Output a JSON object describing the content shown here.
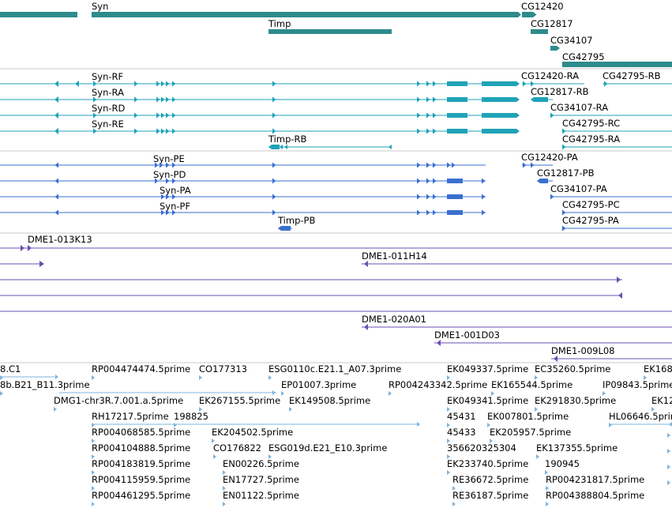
{
  "colors": {
    "gene": "#2e8b8b",
    "transcript": "#1fa3b8",
    "protein": "#3a6fd0",
    "clone": "#6a4fb0",
    "est": "#7fb4dc",
    "divider": "#c8c8c8"
  },
  "tracks": [
    {
      "name": "gene",
      "features": [
        {
          "label": "Syn",
          "kind": "bar"
        },
        {
          "label": "",
          "kind": "bar"
        },
        {
          "label": "CG12420",
          "kind": "arrow"
        },
        {
          "label": "Timp",
          "kind": "bar"
        },
        {
          "label": "CG12817",
          "kind": "bar"
        },
        {
          "label": "CG34107",
          "kind": "arrow"
        },
        {
          "label": "CG42795",
          "kind": "bar"
        }
      ]
    },
    {
      "name": "transcript",
      "features": [
        {
          "label": "Syn-RF"
        },
        {
          "label": "Syn-RA"
        },
        {
          "label": "Syn-RD"
        },
        {
          "label": "Syn-RE"
        },
        {
          "label": "CG12420-RA"
        },
        {
          "label": "CG42795-RB"
        },
        {
          "label": "CG12817-RB"
        },
        {
          "label": "CG34107-RA"
        },
        {
          "label": "CG42795-RC"
        },
        {
          "label": "Timp-RB"
        },
        {
          "label": "CG42795-RA"
        }
      ]
    },
    {
      "name": "protein",
      "features": [
        {
          "label": "Syn-PE"
        },
        {
          "label": "Syn-PD"
        },
        {
          "label": "Syn-PA"
        },
        {
          "label": "Syn-PF"
        },
        {
          "label": "CG12420-PA"
        },
        {
          "label": "CG12817-PB"
        },
        {
          "label": "CG34107-PA"
        },
        {
          "label": "CG42795-PC"
        },
        {
          "label": "Timp-PB"
        },
        {
          "label": "CG42795-PA"
        }
      ]
    },
    {
      "name": "clone",
      "features": [
        {
          "label": "DME1-013K13"
        },
        {
          "label": "DME1-011H14"
        },
        {
          "label": "DME1-020A01"
        },
        {
          "label": "DME1-001D03"
        },
        {
          "label": "DME1-009L08"
        }
      ]
    },
    {
      "name": "est",
      "features": [
        {
          "label": "8.C1"
        },
        {
          "label": "RP004474474.5prime"
        },
        {
          "label": "CO177313"
        },
        {
          "label": "ESG0110c.E21.1_A07.3prime"
        },
        {
          "label": "EK049337.5prime"
        },
        {
          "label": "EC35260.5prime"
        },
        {
          "label": "EK168"
        },
        {
          "label": "8b.B21_B11.3prime"
        },
        {
          "label": "EP01007.3prime"
        },
        {
          "label": "RP004243342.5prime"
        },
        {
          "label": "EK165544.5prime"
        },
        {
          "label": "IP09843.5prime"
        },
        {
          "label": "DMG1-chr3R.7.001.a.5prime"
        },
        {
          "label": "EK267155.5prime"
        },
        {
          "label": "EK149508.5prime"
        },
        {
          "label": "EK049341.5prime"
        },
        {
          "label": "EK291830.5prime"
        },
        {
          "label": "EK12"
        },
        {
          "label": "RH17217.5prime"
        },
        {
          "label": "198825"
        },
        {
          "label": "45431"
        },
        {
          "label": "EK007801.5prime"
        },
        {
          "label": "HL06646.5prime"
        },
        {
          "label": "RP004068585.5prime"
        },
        {
          "label": "EK204502.5prime"
        },
        {
          "label": "45433"
        },
        {
          "label": "EK205957.5prime"
        },
        {
          "label": "RP004104888.5prime"
        },
        {
          "label": "CO176822"
        },
        {
          "label": "ESG019d.E21_E10.3prime"
        },
        {
          "label": "356620325304"
        },
        {
          "label": "EK137355.5prime"
        },
        {
          "label": "RP004183819.5prime"
        },
        {
          "label": "EN00226.5prime"
        },
        {
          "label": "EK233740.5prime"
        },
        {
          "label": "190945"
        },
        {
          "label": "RP004115959.5prime"
        },
        {
          "label": "EN17727.5prime"
        },
        {
          "label": "RE36672.5prime"
        },
        {
          "label": "RP004231817.5prime"
        },
        {
          "label": "RP004461295.5prime"
        },
        {
          "label": "EN01122.5prime"
        },
        {
          "label": "RE36187.5prime"
        },
        {
          "label": "RP004388804.5prime"
        }
      ]
    }
  ]
}
